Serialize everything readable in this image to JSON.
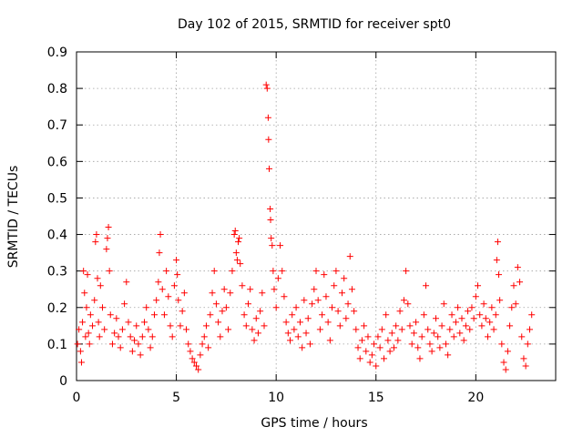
{
  "chart_data": {
    "type": "scatter",
    "title": "Day 102 of 2015, SRMTID for receiver spt0",
    "xlabel": "GPS time / hours",
    "ylabel": "SRMTID / TECUs",
    "xlim": [
      0,
      24
    ],
    "ylim": [
      0,
      0.9
    ],
    "xticks": [
      0,
      5,
      10,
      15,
      20
    ],
    "xtick_labels": [
      "0",
      "5",
      "10",
      "15",
      "20"
    ],
    "yticks": [
      0,
      0.1,
      0.2,
      0.3,
      0.4,
      0.5,
      0.6,
      0.7,
      0.8,
      0.9
    ],
    "ytick_labels": [
      "0",
      "0.1",
      "0.2",
      "0.3",
      "0.4",
      "0.5",
      "0.6",
      "0.7",
      "0.8",
      "0.9"
    ],
    "grid": true,
    "marker": "+",
    "color": "#ff0000",
    "series": [
      {
        "name": "SRMTID",
        "points": [
          [
            0.05,
            0.1
          ],
          [
            0.12,
            0.14
          ],
          [
            0.2,
            0.08
          ],
          [
            0.25,
            0.05
          ],
          [
            0.3,
            0.16
          ],
          [
            0.35,
            0.3
          ],
          [
            0.4,
            0.24
          ],
          [
            0.45,
            0.12
          ],
          [
            0.5,
            0.2
          ],
          [
            0.55,
            0.29
          ],
          [
            0.6,
            0.13
          ],
          [
            0.65,
            0.1
          ],
          [
            0.7,
            0.18
          ],
          [
            0.8,
            0.15
          ],
          [
            0.9,
            0.22
          ],
          [
            0.95,
            0.38
          ],
          [
            1.0,
            0.4
          ],
          [
            1.05,
            0.28
          ],
          [
            1.1,
            0.16
          ],
          [
            1.15,
            0.12
          ],
          [
            1.2,
            0.26
          ],
          [
            1.3,
            0.2
          ],
          [
            1.4,
            0.14
          ],
          [
            1.5,
            0.36
          ],
          [
            1.55,
            0.39
          ],
          [
            1.6,
            0.42
          ],
          [
            1.65,
            0.3
          ],
          [
            1.7,
            0.18
          ],
          [
            1.8,
            0.1
          ],
          [
            1.9,
            0.13
          ],
          [
            2.0,
            0.17
          ],
          [
            2.1,
            0.12
          ],
          [
            2.2,
            0.09
          ],
          [
            2.3,
            0.14
          ],
          [
            2.4,
            0.21
          ],
          [
            2.5,
            0.27
          ],
          [
            2.6,
            0.16
          ],
          [
            2.7,
            0.12
          ],
          [
            2.8,
            0.08
          ],
          [
            2.9,
            0.11
          ],
          [
            3.0,
            0.15
          ],
          [
            3.1,
            0.1
          ],
          [
            3.2,
            0.07
          ],
          [
            3.3,
            0.12
          ],
          [
            3.4,
            0.16
          ],
          [
            3.5,
            0.2
          ],
          [
            3.6,
            0.14
          ],
          [
            3.7,
            0.09
          ],
          [
            3.8,
            0.12
          ],
          [
            3.9,
            0.18
          ],
          [
            4.0,
            0.22
          ],
          [
            4.1,
            0.27
          ],
          [
            4.15,
            0.35
          ],
          [
            4.2,
            0.4
          ],
          [
            4.3,
            0.25
          ],
          [
            4.4,
            0.18
          ],
          [
            4.5,
            0.3
          ],
          [
            4.6,
            0.23
          ],
          [
            4.7,
            0.15
          ],
          [
            4.8,
            0.12
          ],
          [
            4.9,
            0.26
          ],
          [
            5.0,
            0.33
          ],
          [
            5.05,
            0.29
          ],
          [
            5.1,
            0.22
          ],
          [
            5.2,
            0.15
          ],
          [
            5.3,
            0.19
          ],
          [
            5.4,
            0.24
          ],
          [
            5.5,
            0.14
          ],
          [
            5.6,
            0.1
          ],
          [
            5.7,
            0.08
          ],
          [
            5.8,
            0.06
          ],
          [
            5.9,
            0.05
          ],
          [
            6.0,
            0.04
          ],
          [
            6.1,
            0.03
          ],
          [
            6.2,
            0.07
          ],
          [
            6.3,
            0.1
          ],
          [
            6.4,
            0.12
          ],
          [
            6.5,
            0.15
          ],
          [
            6.6,
            0.09
          ],
          [
            6.7,
            0.18
          ],
          [
            6.8,
            0.24
          ],
          [
            6.9,
            0.3
          ],
          [
            7.0,
            0.21
          ],
          [
            7.1,
            0.16
          ],
          [
            7.2,
            0.12
          ],
          [
            7.3,
            0.19
          ],
          [
            7.4,
            0.25
          ],
          [
            7.5,
            0.2
          ],
          [
            7.6,
            0.14
          ],
          [
            7.7,
            0.24
          ],
          [
            7.8,
            0.3
          ],
          [
            7.9,
            0.4
          ],
          [
            7.95,
            0.41
          ],
          [
            8.0,
            0.35
          ],
          [
            8.05,
            0.33
          ],
          [
            8.1,
            0.38
          ],
          [
            8.15,
            0.39
          ],
          [
            8.2,
            0.32
          ],
          [
            8.3,
            0.26
          ],
          [
            8.4,
            0.18
          ],
          [
            8.5,
            0.15
          ],
          [
            8.6,
            0.21
          ],
          [
            8.7,
            0.25
          ],
          [
            8.8,
            0.14
          ],
          [
            8.9,
            0.11
          ],
          [
            9.0,
            0.17
          ],
          [
            9.1,
            0.13
          ],
          [
            9.2,
            0.19
          ],
          [
            9.3,
            0.24
          ],
          [
            9.4,
            0.15
          ],
          [
            9.5,
            0.81
          ],
          [
            9.55,
            0.8
          ],
          [
            9.6,
            0.72
          ],
          [
            9.62,
            0.66
          ],
          [
            9.65,
            0.58
          ],
          [
            9.7,
            0.47
          ],
          [
            9.72,
            0.44
          ],
          [
            9.75,
            0.39
          ],
          [
            9.8,
            0.37
          ],
          [
            9.85,
            0.3
          ],
          [
            9.9,
            0.25
          ],
          [
            10.0,
            0.2
          ],
          [
            10.1,
            0.28
          ],
          [
            10.2,
            0.37
          ],
          [
            10.3,
            0.3
          ],
          [
            10.4,
            0.23
          ],
          [
            10.5,
            0.16
          ],
          [
            10.6,
            0.13
          ],
          [
            10.7,
            0.11
          ],
          [
            10.8,
            0.18
          ],
          [
            10.9,
            0.14
          ],
          [
            11.0,
            0.2
          ],
          [
            11.1,
            0.12
          ],
          [
            11.2,
            0.16
          ],
          [
            11.3,
            0.09
          ],
          [
            11.4,
            0.22
          ],
          [
            11.5,
            0.13
          ],
          [
            11.6,
            0.17
          ],
          [
            11.7,
            0.1
          ],
          [
            11.8,
            0.21
          ],
          [
            11.9,
            0.25
          ],
          [
            12.0,
            0.3
          ],
          [
            12.1,
            0.22
          ],
          [
            12.2,
            0.14
          ],
          [
            12.3,
            0.18
          ],
          [
            12.4,
            0.29
          ],
          [
            12.5,
            0.23
          ],
          [
            12.6,
            0.16
          ],
          [
            12.7,
            0.11
          ],
          [
            12.8,
            0.2
          ],
          [
            12.9,
            0.26
          ],
          [
            13.0,
            0.3
          ],
          [
            13.1,
            0.19
          ],
          [
            13.2,
            0.15
          ],
          [
            13.3,
            0.24
          ],
          [
            13.4,
            0.28
          ],
          [
            13.5,
            0.17
          ],
          [
            13.6,
            0.21
          ],
          [
            13.7,
            0.34
          ],
          [
            13.8,
            0.25
          ],
          [
            13.9,
            0.19
          ],
          [
            14.0,
            0.14
          ],
          [
            14.1,
            0.09
          ],
          [
            14.2,
            0.06
          ],
          [
            14.3,
            0.11
          ],
          [
            14.4,
            0.15
          ],
          [
            14.5,
            0.08
          ],
          [
            14.6,
            0.12
          ],
          [
            14.7,
            0.05
          ],
          [
            14.8,
            0.07
          ],
          [
            14.9,
            0.1
          ],
          [
            15.0,
            0.04
          ],
          [
            15.1,
            0.12
          ],
          [
            15.2,
            0.09
          ],
          [
            15.3,
            0.14
          ],
          [
            15.4,
            0.06
          ],
          [
            15.5,
            0.18
          ],
          [
            15.6,
            0.11
          ],
          [
            15.7,
            0.08
          ],
          [
            15.8,
            0.13
          ],
          [
            15.9,
            0.09
          ],
          [
            16.0,
            0.15
          ],
          [
            16.1,
            0.11
          ],
          [
            16.2,
            0.19
          ],
          [
            16.3,
            0.14
          ],
          [
            16.4,
            0.22
          ],
          [
            16.5,
            0.3
          ],
          [
            16.6,
            0.21
          ],
          [
            16.7,
            0.15
          ],
          [
            16.8,
            0.1
          ],
          [
            16.9,
            0.13
          ],
          [
            17.0,
            0.16
          ],
          [
            17.1,
            0.09
          ],
          [
            17.2,
            0.06
          ],
          [
            17.3,
            0.12
          ],
          [
            17.4,
            0.18
          ],
          [
            17.5,
            0.26
          ],
          [
            17.6,
            0.14
          ],
          [
            17.7,
            0.1
          ],
          [
            17.8,
            0.08
          ],
          [
            17.9,
            0.13
          ],
          [
            18.0,
            0.17
          ],
          [
            18.1,
            0.12
          ],
          [
            18.2,
            0.09
          ],
          [
            18.3,
            0.15
          ],
          [
            18.4,
            0.21
          ],
          [
            18.5,
            0.1
          ],
          [
            18.6,
            0.07
          ],
          [
            18.7,
            0.14
          ],
          [
            18.8,
            0.18
          ],
          [
            18.9,
            0.12
          ],
          [
            19.0,
            0.16
          ],
          [
            19.1,
            0.2
          ],
          [
            19.2,
            0.13
          ],
          [
            19.3,
            0.17
          ],
          [
            19.4,
            0.11
          ],
          [
            19.5,
            0.15
          ],
          [
            19.6,
            0.19
          ],
          [
            19.7,
            0.14
          ],
          [
            19.8,
            0.2
          ],
          [
            19.9,
            0.17
          ],
          [
            20.0,
            0.23
          ],
          [
            20.1,
            0.26
          ],
          [
            20.2,
            0.18
          ],
          [
            20.3,
            0.15
          ],
          [
            20.4,
            0.21
          ],
          [
            20.5,
            0.17
          ],
          [
            20.6,
            0.12
          ],
          [
            20.7,
            0.16
          ],
          [
            20.8,
            0.2
          ],
          [
            20.9,
            0.14
          ],
          [
            21.0,
            0.18
          ],
          [
            21.05,
            0.33
          ],
          [
            21.1,
            0.38
          ],
          [
            21.15,
            0.29
          ],
          [
            21.2,
            0.22
          ],
          [
            21.3,
            0.1
          ],
          [
            21.4,
            0.05
          ],
          [
            21.5,
            0.03
          ],
          [
            21.6,
            0.08
          ],
          [
            21.7,
            0.15
          ],
          [
            21.8,
            0.2
          ],
          [
            21.9,
            0.26
          ],
          [
            22.0,
            0.21
          ],
          [
            22.1,
            0.31
          ],
          [
            22.2,
            0.27
          ],
          [
            22.3,
            0.12
          ],
          [
            22.4,
            0.06
          ],
          [
            22.5,
            0.04
          ],
          [
            22.6,
            0.1
          ],
          [
            22.7,
            0.14
          ],
          [
            22.8,
            0.18
          ]
        ]
      }
    ]
  }
}
